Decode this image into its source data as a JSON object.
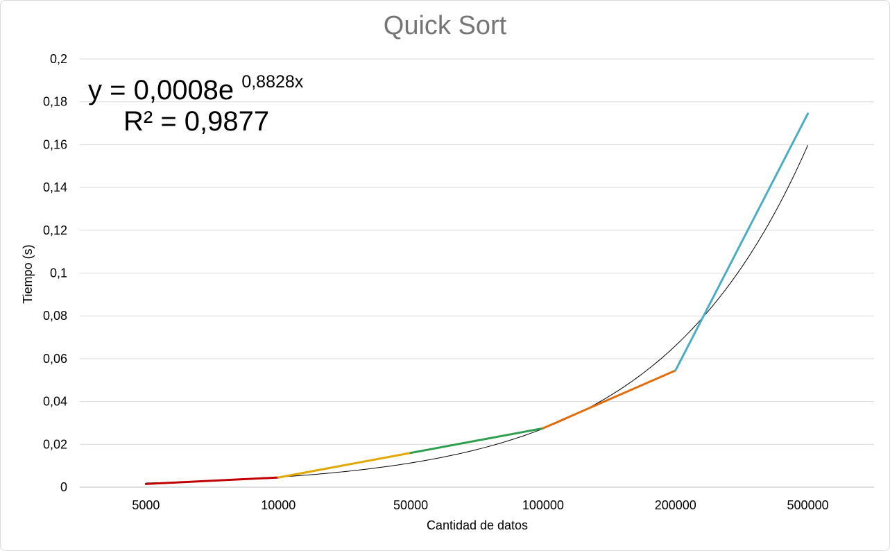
{
  "chart_data": {
    "type": "line",
    "title": "Quick Sort",
    "xlabel": "Cantidad de datos",
    "ylabel": "Tiempo (s)",
    "categories": [
      "5000",
      "10000",
      "50000",
      "100000",
      "200000",
      "500000"
    ],
    "y_ticks": [
      "0",
      "0,02",
      "0,04",
      "0,06",
      "0,08",
      "0,1",
      "0,12",
      "0,14",
      "0,16",
      "0,18",
      "0,2"
    ],
    "ylim": [
      0,
      0.2
    ],
    "grid": true,
    "values": [
      0.0015,
      0.0045,
      0.016,
      0.0275,
      0.0545,
      0.1745
    ],
    "segment_colors": [
      "#c00000",
      "#e0a800",
      "#2e9e4f",
      "#e36c0a",
      "#4bacc6"
    ],
    "trendline": {
      "type": "exponential",
      "equation_prefix": "y = 0,0008e",
      "equation_exponent": "0,8828x",
      "r_squared": "R² = 0,9877",
      "a": 0.0008,
      "b": 0.8828,
      "color": "#000000"
    }
  }
}
